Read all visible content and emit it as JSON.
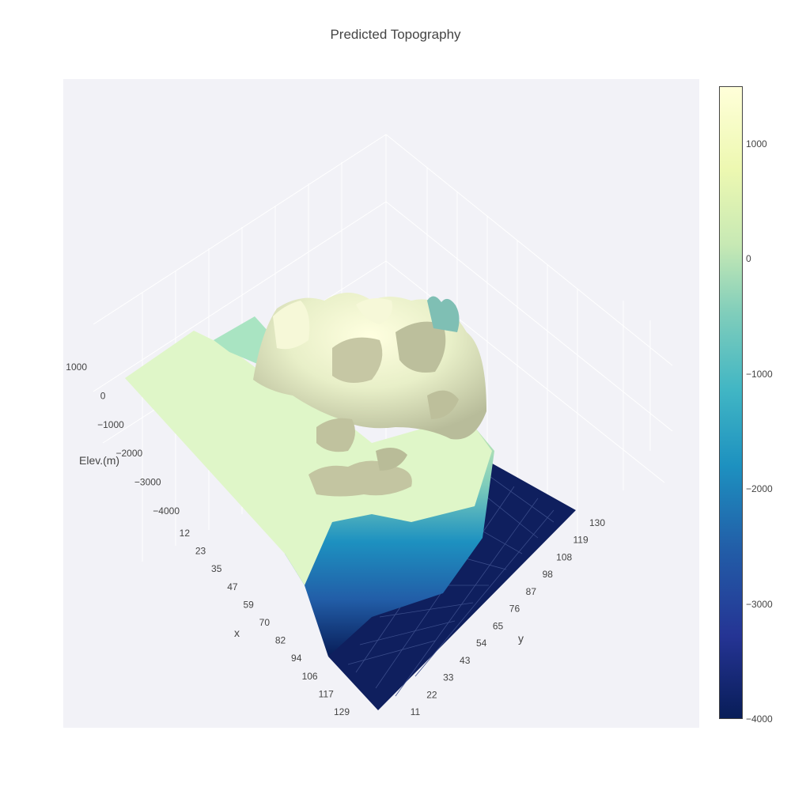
{
  "chart_data": {
    "type": "surface",
    "title": "Predicted Topography",
    "axes": {
      "x": {
        "title": "x",
        "tick_labels": [
          "12",
          "23",
          "35",
          "47",
          "59",
          "70",
          "82",
          "94",
          "106",
          "117",
          "129"
        ]
      },
      "y": {
        "title": "y",
        "tick_labels": [
          "11",
          "22",
          "33",
          "43",
          "54",
          "65",
          "76",
          "87",
          "98",
          "108",
          "119",
          "130"
        ]
      },
      "z": {
        "title": "Elev.(m)",
        "tick_labels": [
          "1000",
          "0",
          "−1000",
          "−2000",
          "−3000",
          "−4000"
        ],
        "range": [
          -4000,
          1500
        ]
      }
    },
    "colorbar": {
      "range": [
        -4000,
        1500
      ],
      "tick_values": [
        1000,
        0,
        -1000,
        -2000,
        -3000,
        -4000
      ],
      "tick_labels": [
        "1000",
        "0",
        "−1000",
        "−2000",
        "−3000",
        "−4000"
      ],
      "colorscale": "YlGnBu",
      "colors": [
        "#081d58",
        "#253494",
        "#225ea8",
        "#1d91c0",
        "#41b6c4",
        "#7fcdbb",
        "#c7e9b4",
        "#edf8b1",
        "#ffffd9"
      ]
    },
    "surface_description_values": {
      "land_plateau_elevation": 200,
      "peak_elevation": 1400,
      "ocean_floor_elevation": -4000
    },
    "grid": true
  }
}
